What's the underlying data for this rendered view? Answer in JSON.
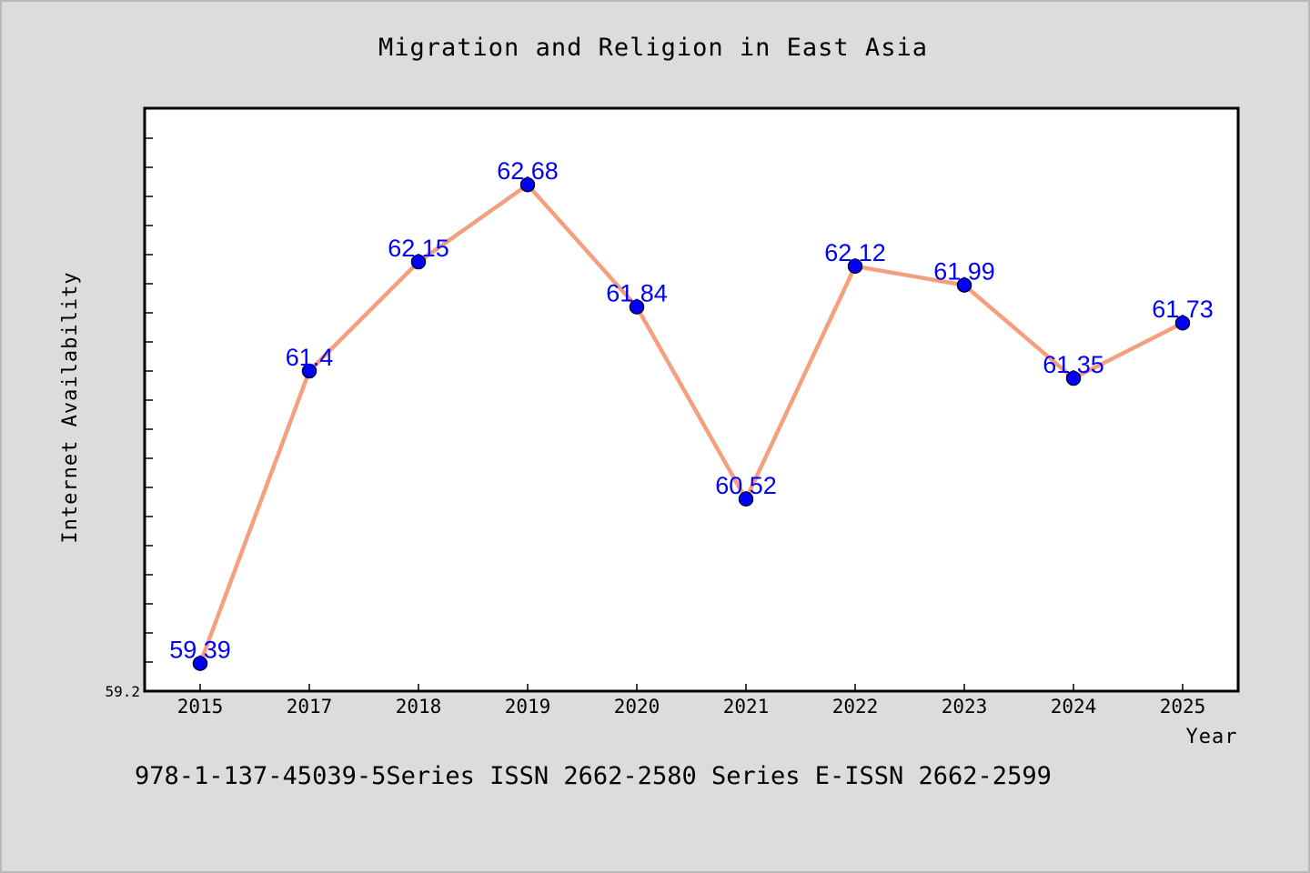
{
  "chart_data": {
    "type": "line",
    "title": "Migration and Religion in East Asia",
    "xlabel": "Year",
    "ylabel": "Internet Availability",
    "categories": [
      "2015",
      "2017",
      "2018",
      "2019",
      "2020",
      "2021",
      "2022",
      "2023",
      "2024",
      "2025"
    ],
    "series": [
      {
        "values": [
          59.39,
          61.4,
          62.15,
          62.68,
          61.84,
          60.52,
          62.12,
          61.99,
          61.35,
          61.73
        ],
        "labels": [
          "59.39",
          "61.4",
          "62.15",
          "62.68",
          "61.84",
          "60.52",
          "62.12",
          "61.99",
          "61.35",
          "61.73"
        ]
      }
    ],
    "ylim": [
      59.2,
      63.2
    ],
    "yticks": [
      {
        "value": 59.2,
        "label": "59.2"
      }
    ],
    "y_minor_tick_step": 0.2,
    "grid": false,
    "colors": {
      "line": "#f4a07f",
      "marker": "#0000ff",
      "data_label": "#0000ff",
      "plot_background": "#ffffff",
      "page_background": "#dcdcdc"
    }
  },
  "footer": {
    "text": "978-1-137-45039-5Series ISSN 2662-2580 Series E-ISSN 2662-2599"
  }
}
